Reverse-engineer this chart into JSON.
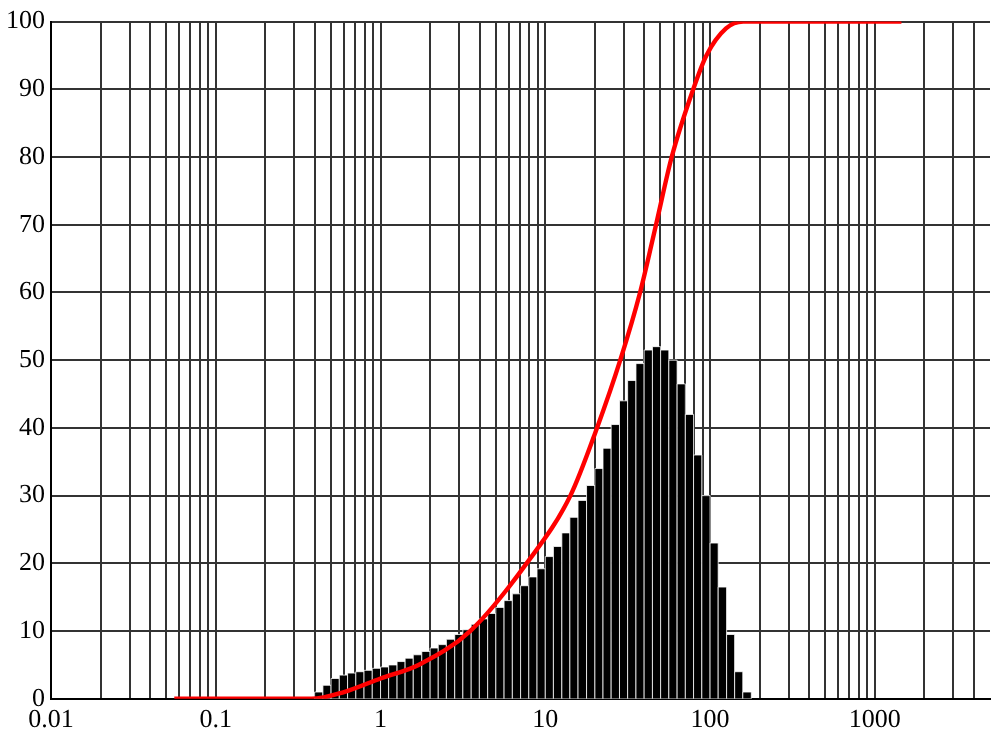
{
  "chart_data": {
    "type": "histogram",
    "grid": true,
    "legend": false,
    "xlim": [
      0.01,
      5000
    ],
    "xticks": [
      0.01,
      {
        "value": 0.02,
        "label": null
      },
      {
        "value": 0.03,
        "label": null
      },
      {
        "value": 0.04,
        "label": null
      },
      {
        "value": 0.05,
        "label": null
      },
      {
        "value": 0.06,
        "label": null
      },
      {
        "value": 0.07,
        "label": null
      },
      {
        "value": 0.08,
        "label": null
      },
      {
        "value": 0.09,
        "label": null
      },
      0.1,
      {
        "value": 0.2,
        "label": null
      },
      {
        "value": 0.3,
        "label": null
      },
      {
        "value": 0.4,
        "label": null
      },
      {
        "value": 0.5,
        "label": null
      },
      {
        "value": 0.6,
        "label": null
      },
      {
        "value": 0.7,
        "label": null
      },
      {
        "value": 0.8,
        "label": null
      },
      {
        "value": 0.9,
        "label": null
      },
      1,
      {
        "value": 2,
        "label": null
      },
      {
        "value": 3,
        "label": null
      },
      {
        "value": 4,
        "label": null
      },
      {
        "value": 5,
        "label": null
      },
      {
        "value": 6,
        "label": null
      },
      {
        "value": 7,
        "label": null
      },
      {
        "value": 8,
        "label": null
      },
      {
        "value": 9,
        "label": null
      },
      10,
      {
        "value": 20,
        "label": null
      },
      {
        "value": 30,
        "label": null
      },
      {
        "value": 40,
        "label": null
      },
      {
        "value": 50,
        "label": null
      },
      {
        "value": 60,
        "label": null
      },
      {
        "value": 70,
        "label": null
      },
      {
        "value": 80,
        "label": null
      },
      {
        "value": 90,
        "label": null
      },
      100,
      {
        "value": 200,
        "label": null
      },
      {
        "value": 300,
        "label": null
      },
      {
        "value": 400,
        "label": null
      },
      {
        "value": 500,
        "label": null
      },
      {
        "value": 600,
        "label": null
      },
      {
        "value": 700,
        "label": null
      },
      {
        "value": 800,
        "label": null
      },
      {
        "value": 900,
        "label": null
      },
      1000,
      {
        "value": 2000,
        "label": null
      },
      {
        "value": 3000,
        "label": null
      },
      {
        "value": 4000,
        "label": null
      }
    ],
    "log": "x",
    "ylim": [
      0,
      100
    ],
    "yticks": [
      0,
      10,
      20,
      30,
      40,
      50,
      60,
      70,
      80,
      90,
      100
    ],
    "color": "#000000",
    "bins": [
      0.398,
      0.447,
      0.501,
      0.562,
      0.631,
      0.708,
      0.794,
      0.891,
      1,
      1.12,
      1.26,
      1.41,
      1.58,
      1.78,
      2,
      2.24,
      2.51,
      2.82,
      3.16,
      3.55,
      3.98,
      4.47,
      5.01,
      5.62,
      6.31,
      7.08,
      7.94,
      8.91,
      10,
      11.2,
      12.6,
      14.1,
      15.8,
      17.8,
      20,
      22.4,
      25.1,
      28.2,
      31.6,
      35.5,
      39.8,
      44.7,
      50.1,
      56.2,
      63.1,
      70.8,
      79.4,
      89.1,
      100,
      112,
      126,
      141,
      158,
      178
    ],
    "values": [
      1,
      2,
      3,
      3.5,
      3.8,
      4,
      4.2,
      4.5,
      4.7,
      5,
      5.5,
      6,
      6.5,
      7,
      7.5,
      8,
      8.8,
      9.5,
      10.2,
      11,
      11.8,
      12.6,
      13.5,
      14.5,
      15.5,
      16.7,
      18,
      19.2,
      21,
      22.5,
      24.5,
      26.8,
      29.3,
      31.5,
      34,
      37,
      40.5,
      44,
      47,
      49.5,
      51.5,
      52,
      51.5,
      50,
      46.5,
      42,
      36,
      30,
      23,
      16.5,
      9.5,
      4,
      1
    ],
    "series": [
      {
        "type": "line",
        "color": "#ff0000",
        "x": [
          0.056,
          0.38,
          0.6,
          1,
          1.7,
          3.5,
          7.7,
          14.2,
          20.6,
          28.5,
          37.6,
          47,
          58.5,
          79,
          95,
          125,
          159,
          1450
        ],
        "values": [
          0,
          0,
          1,
          3,
          5,
          10,
          20,
          30,
          40,
          50,
          60,
          70,
          80,
          90,
          95,
          99,
          100,
          100
        ]
      }
    ]
  }
}
